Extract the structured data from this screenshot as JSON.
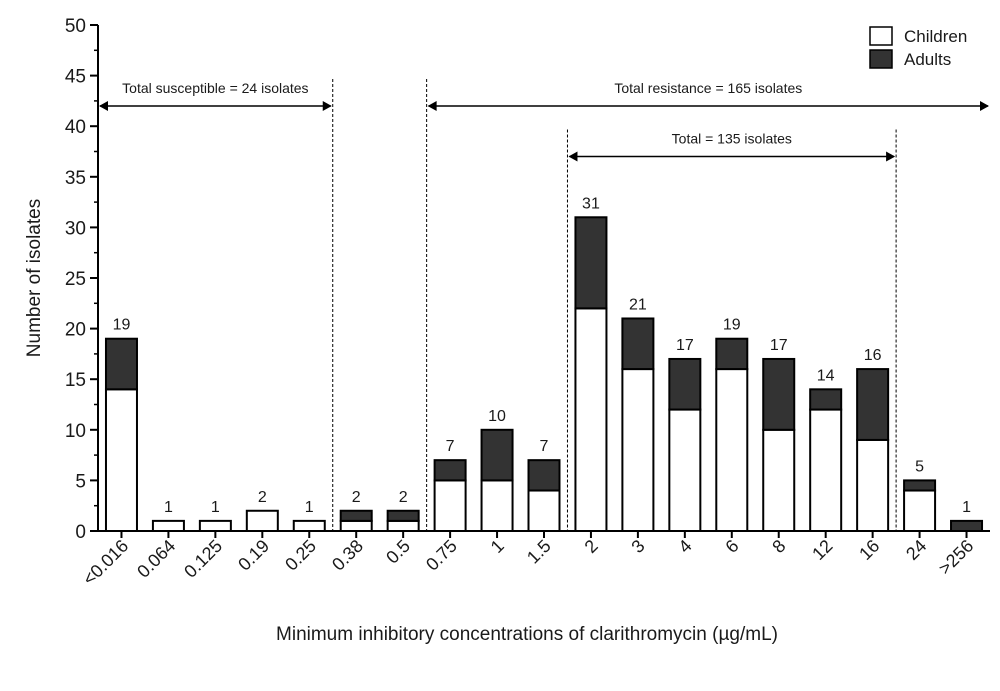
{
  "chart_data": {
    "type": "bar",
    "stacked": true,
    "title": "",
    "xlabel": "Minimum inhibitory concentrations of clarithromycin (µg/mL)",
    "ylabel": "Number of isolates",
    "ylim": [
      0,
      50
    ],
    "yticks": [
      0,
      5,
      10,
      15,
      20,
      25,
      30,
      35,
      40,
      45,
      50
    ],
    "grid": false,
    "legend_position": "top-right",
    "categories": [
      "<0.016",
      "0.064",
      "0.125",
      "0.19",
      "0.25",
      "0.38",
      "0.5",
      "0.75",
      "1",
      "1.5",
      "2",
      "3",
      "4",
      "6",
      "8",
      "12",
      "16",
      "24",
      ">256"
    ],
    "series": [
      {
        "name": "Children",
        "color": "#ffffff",
        "values": [
          14,
          1,
          1,
          2,
          1,
          1,
          1,
          5,
          5,
          4,
          22,
          16,
          12,
          16,
          10,
          12,
          9,
          4,
          0
        ]
      },
      {
        "name": "Adults",
        "color": "#333333",
        "values": [
          5,
          0,
          0,
          0,
          0,
          1,
          1,
          2,
          5,
          3,
          9,
          5,
          5,
          3,
          7,
          2,
          7,
          1,
          1
        ]
      }
    ],
    "totals": [
      "19",
      "1",
      "1",
      "2",
      "1",
      "2",
      "2",
      "7",
      "10",
      "7",
      "31",
      "21",
      "17",
      "19",
      "17",
      "14",
      "16",
      "5",
      "1"
    ],
    "annotations": [
      {
        "text": "Total susceptible = 24 isolates",
        "from_category": "<0.016",
        "to_category": "0.25",
        "y": 42
      },
      {
        "text": "Total resistance = 165 isolates",
        "from_category": "0.75",
        "to_category": ">256",
        "y": 42
      },
      {
        "text": "Total = 135 isolates",
        "from_category": "2",
        "to_category": "16",
        "y": 37
      }
    ]
  }
}
